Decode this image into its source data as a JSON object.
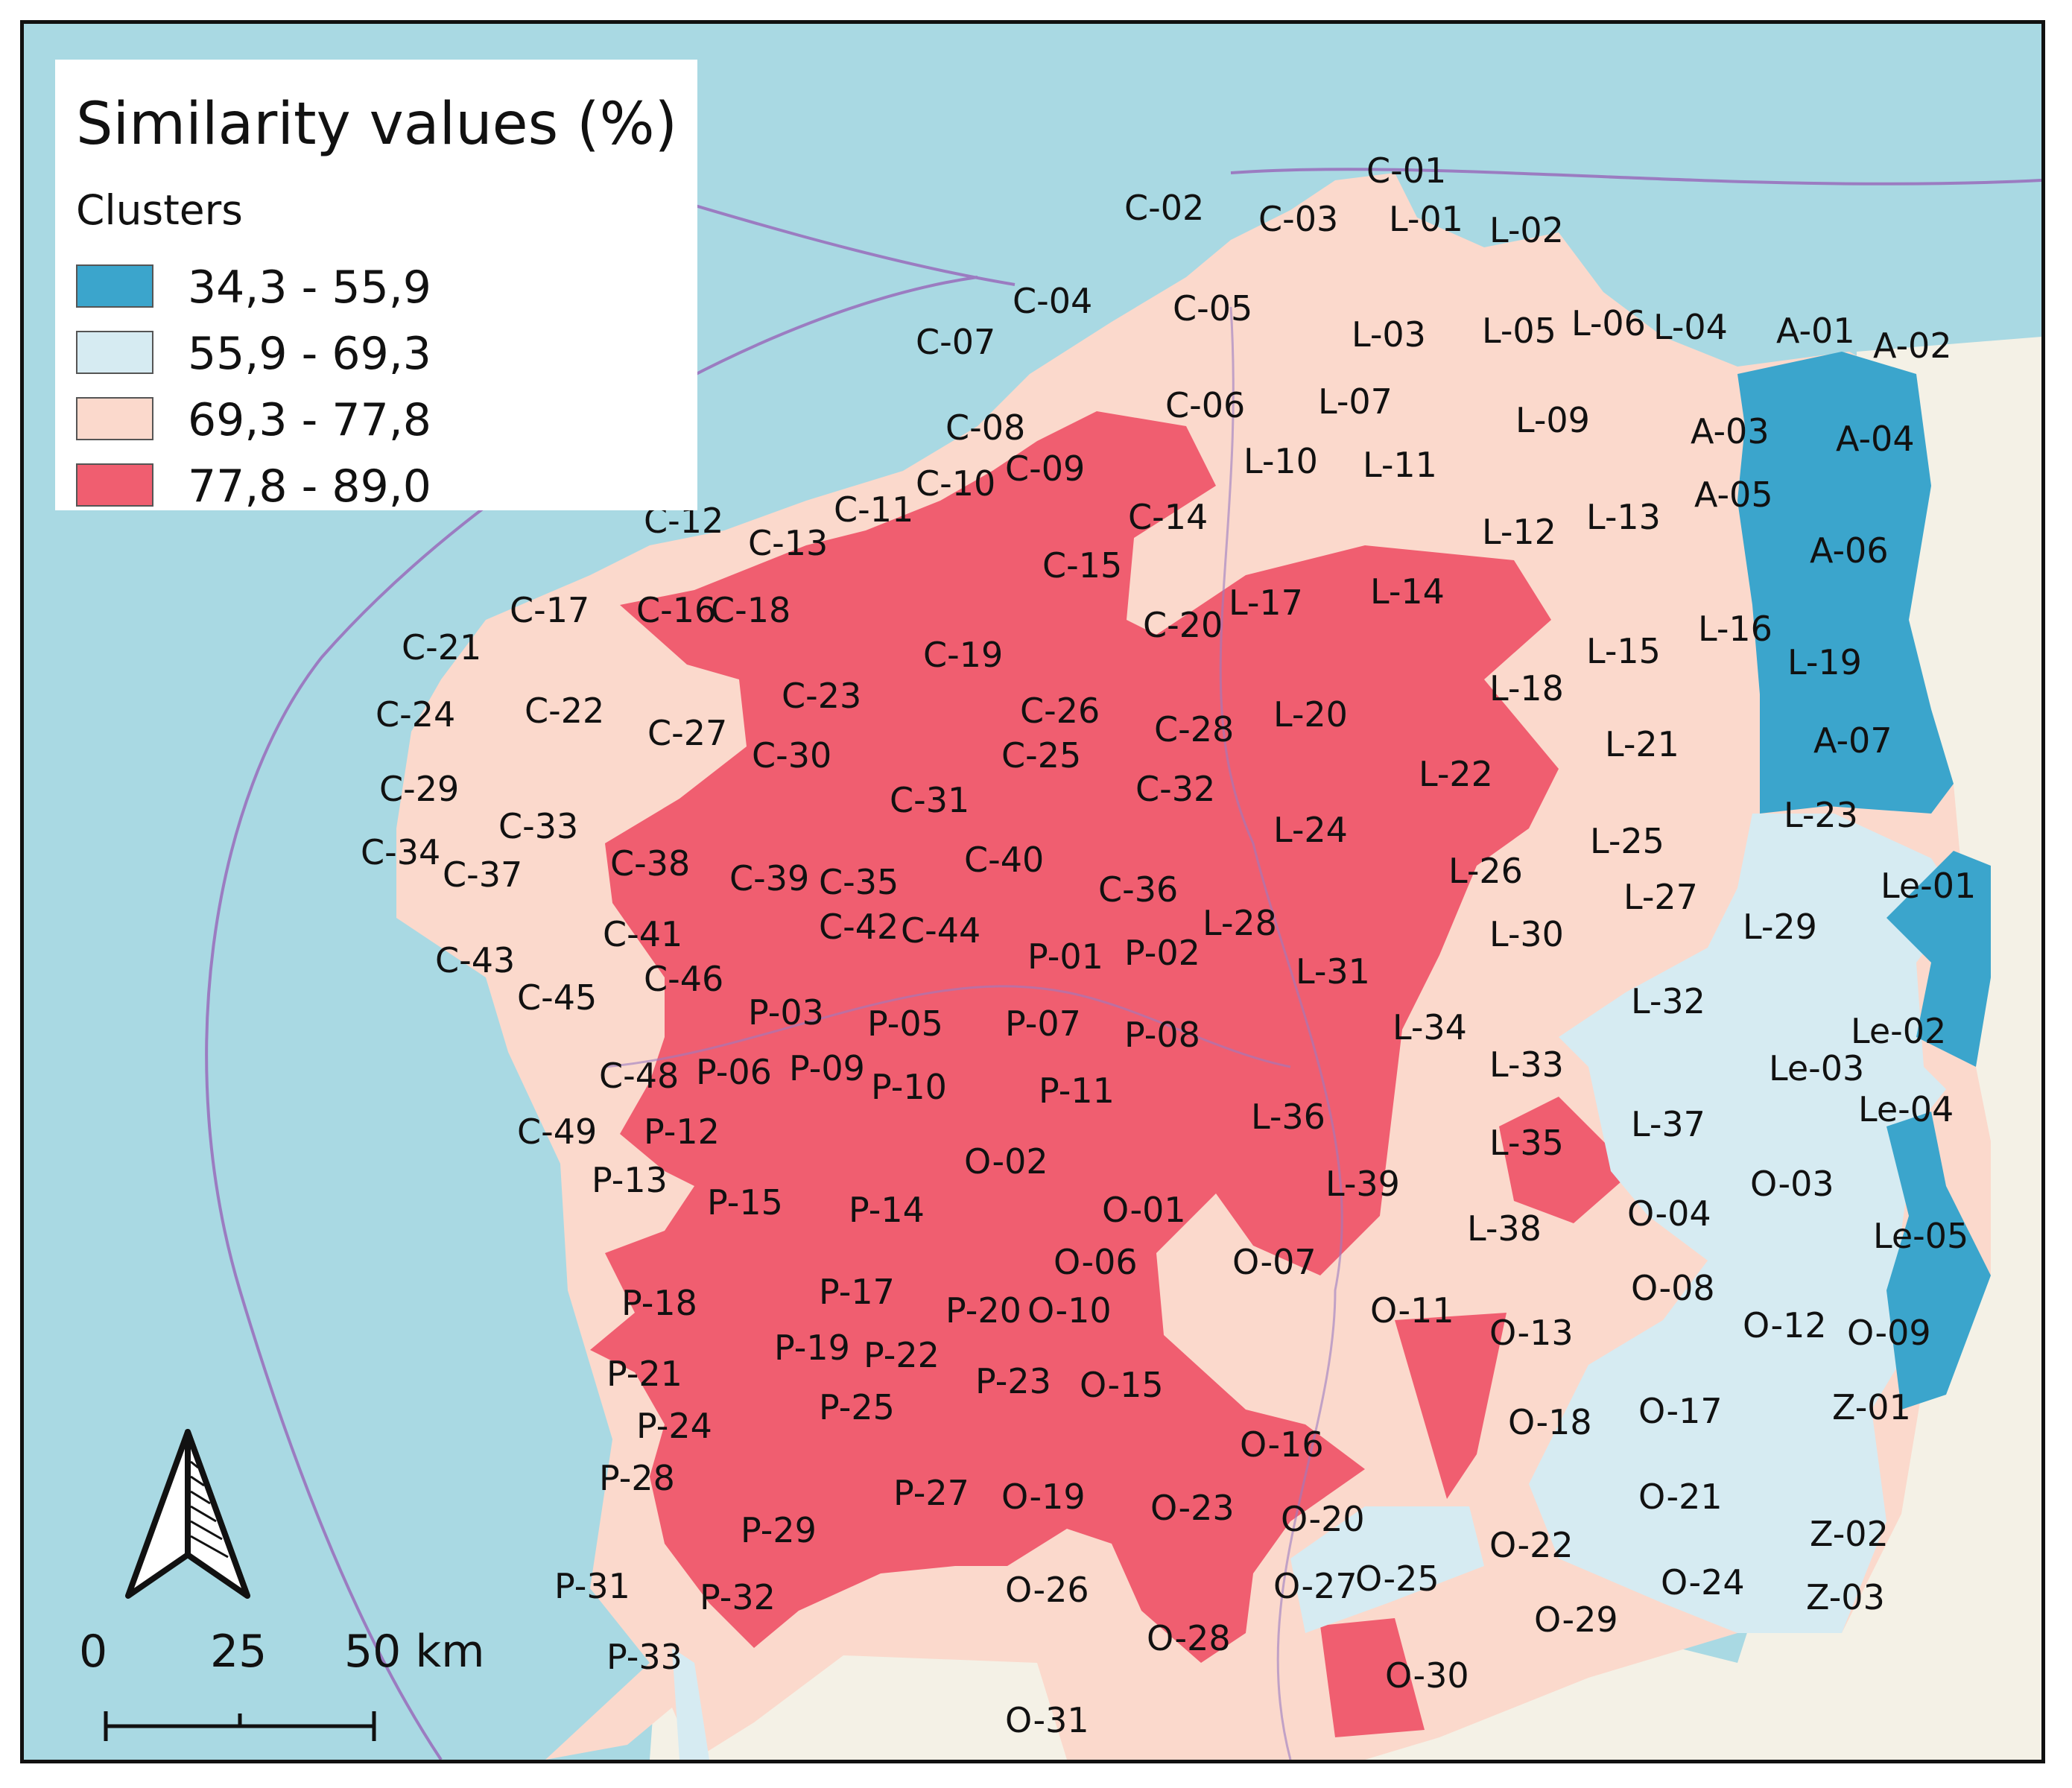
{
  "legend": {
    "title": "Similarity values (%)",
    "subtitle": "Clusters",
    "classes": [
      {
        "label": "34,3 - 55,9",
        "color": "#3ba5cc"
      },
      {
        "label": "55,9 - 69,3",
        "color": "#d6ebf2"
      },
      {
        "label": "69,3 - 77,8",
        "color": "#fbd9cc"
      },
      {
        "label": "77,8 - 89,0",
        "color": "#f05e70"
      }
    ]
  },
  "scale": {
    "ticks": [
      "0",
      "25",
      "50 km"
    ]
  },
  "colors": {
    "sea": "#a9d9e3",
    "land_outside": "#f4f1e6",
    "border_lines": "#9b7cc1"
  },
  "north_arrow_icon": "north-arrow-icon",
  "labels": [
    {
      "text": "C-01",
      "cluster": 2
    },
    {
      "text": "C-02",
      "cluster": 2
    },
    {
      "text": "C-03",
      "cluster": 2
    },
    {
      "text": "C-04",
      "cluster": 2
    },
    {
      "text": "C-05",
      "cluster": 2
    },
    {
      "text": "C-06",
      "cluster": 2
    },
    {
      "text": "C-07",
      "cluster": 2
    },
    {
      "text": "C-08",
      "cluster": 2
    },
    {
      "text": "C-09",
      "cluster": 3
    },
    {
      "text": "C-10",
      "cluster": 3
    },
    {
      "text": "C-11",
      "cluster": 3
    },
    {
      "text": "C-12",
      "cluster": 2
    },
    {
      "text": "C-13",
      "cluster": 3
    },
    {
      "text": "C-14",
      "cluster": 2
    },
    {
      "text": "C-15",
      "cluster": 2
    },
    {
      "text": "C-16",
      "cluster": 3
    },
    {
      "text": "C-17",
      "cluster": 2
    },
    {
      "text": "C-18",
      "cluster": 3
    },
    {
      "text": "C-19",
      "cluster": 3
    },
    {
      "text": "C-20",
      "cluster": 3
    },
    {
      "text": "C-21",
      "cluster": 2
    },
    {
      "text": "C-22",
      "cluster": 2
    },
    {
      "text": "C-23",
      "cluster": 3
    },
    {
      "text": "C-24",
      "cluster": 2
    },
    {
      "text": "C-25",
      "cluster": 3
    },
    {
      "text": "C-26",
      "cluster": 3
    },
    {
      "text": "C-27",
      "cluster": 2
    },
    {
      "text": "C-28",
      "cluster": 3
    },
    {
      "text": "C-29",
      "cluster": 2
    },
    {
      "text": "C-30",
      "cluster": 3
    },
    {
      "text": "C-31",
      "cluster": 3
    },
    {
      "text": "C-32",
      "cluster": 3
    },
    {
      "text": "C-33",
      "cluster": 2
    },
    {
      "text": "C-34",
      "cluster": 2
    },
    {
      "text": "C-35",
      "cluster": 3
    },
    {
      "text": "C-36",
      "cluster": 3
    },
    {
      "text": "C-37",
      "cluster": 2
    },
    {
      "text": "C-38",
      "cluster": 3
    },
    {
      "text": "C-39",
      "cluster": 3
    },
    {
      "text": "C-40",
      "cluster": 3
    },
    {
      "text": "C-41",
      "cluster": 3
    },
    {
      "text": "C-42",
      "cluster": 3
    },
    {
      "text": "C-43",
      "cluster": 2
    },
    {
      "text": "C-44",
      "cluster": 3
    },
    {
      "text": "C-45",
      "cluster": 2
    },
    {
      "text": "C-46",
      "cluster": 3
    },
    {
      "text": "C-48",
      "cluster": 3
    },
    {
      "text": "C-49",
      "cluster": 2
    },
    {
      "text": "L-01",
      "cluster": 2
    },
    {
      "text": "L-02",
      "cluster": 2
    },
    {
      "text": "L-03",
      "cluster": 2
    },
    {
      "text": "L-04",
      "cluster": 2
    },
    {
      "text": "L-05",
      "cluster": 2
    },
    {
      "text": "L-06",
      "cluster": 2
    },
    {
      "text": "L-07",
      "cluster": 2
    },
    {
      "text": "L-09",
      "cluster": 2
    },
    {
      "text": "L-10",
      "cluster": 2
    },
    {
      "text": "L-11",
      "cluster": 2
    },
    {
      "text": "L-12",
      "cluster": 2
    },
    {
      "text": "L-13",
      "cluster": 2
    },
    {
      "text": "L-14",
      "cluster": 3
    },
    {
      "text": "L-15",
      "cluster": 2
    },
    {
      "text": "L-16",
      "cluster": 2
    },
    {
      "text": "L-17",
      "cluster": 3
    },
    {
      "text": "L-18",
      "cluster": 2
    },
    {
      "text": "L-19",
      "cluster": 0
    },
    {
      "text": "L-20",
      "cluster": 3
    },
    {
      "text": "L-21",
      "cluster": 2
    },
    {
      "text": "L-22",
      "cluster": 3
    },
    {
      "text": "L-23",
      "cluster": 1
    },
    {
      "text": "L-24",
      "cluster": 3
    },
    {
      "text": "L-25",
      "cluster": 2
    },
    {
      "text": "L-26",
      "cluster": 2
    },
    {
      "text": "L-27",
      "cluster": 2
    },
    {
      "text": "L-28",
      "cluster": 3
    },
    {
      "text": "L-29",
      "cluster": 1
    },
    {
      "text": "L-30",
      "cluster": 1
    },
    {
      "text": "L-31",
      "cluster": 3
    },
    {
      "text": "L-32",
      "cluster": 1
    },
    {
      "text": "L-33",
      "cluster": 2
    },
    {
      "text": "L-34",
      "cluster": 2
    },
    {
      "text": "L-35",
      "cluster": 3
    },
    {
      "text": "L-36",
      "cluster": 3
    },
    {
      "text": "L-37",
      "cluster": 1
    },
    {
      "text": "L-38",
      "cluster": 2
    },
    {
      "text": "L-39",
      "cluster": 2
    },
    {
      "text": "A-01",
      "cluster": 0
    },
    {
      "text": "A-02",
      "cluster": 0
    },
    {
      "text": "A-03",
      "cluster": 0
    },
    {
      "text": "A-04",
      "cluster": 0
    },
    {
      "text": "A-05",
      "cluster": 0
    },
    {
      "text": "A-06",
      "cluster": 0
    },
    {
      "text": "A-07",
      "cluster": 0
    },
    {
      "text": "Le-01",
      "cluster": 0
    },
    {
      "text": "Le-02",
      "cluster": 1
    },
    {
      "text": "Le-03",
      "cluster": 1
    },
    {
      "text": "Le-04",
      "cluster": 0
    },
    {
      "text": "Le-05",
      "cluster": 0
    },
    {
      "text": "P-01",
      "cluster": 3
    },
    {
      "text": "P-02",
      "cluster": 3
    },
    {
      "text": "P-03",
      "cluster": 3
    },
    {
      "text": "P-05",
      "cluster": 3
    },
    {
      "text": "P-06",
      "cluster": 2
    },
    {
      "text": "P-07",
      "cluster": 3
    },
    {
      "text": "P-08",
      "cluster": 3
    },
    {
      "text": "P-09",
      "cluster": 3
    },
    {
      "text": "P-10",
      "cluster": 3
    },
    {
      "text": "P-11",
      "cluster": 3
    },
    {
      "text": "P-12",
      "cluster": 2
    },
    {
      "text": "P-13",
      "cluster": 3
    },
    {
      "text": "P-14",
      "cluster": 3
    },
    {
      "text": "P-15",
      "cluster": 3
    },
    {
      "text": "P-17",
      "cluster": 3
    },
    {
      "text": "P-18",
      "cluster": 3
    },
    {
      "text": "P-19",
      "cluster": 3
    },
    {
      "text": "P-20",
      "cluster": 3
    },
    {
      "text": "P-21",
      "cluster": 3
    },
    {
      "text": "P-22",
      "cluster": 3
    },
    {
      "text": "P-23",
      "cluster": 3
    },
    {
      "text": "P-24",
      "cluster": 3
    },
    {
      "text": "P-25",
      "cluster": 3
    },
    {
      "text": "P-27",
      "cluster": 3
    },
    {
      "text": "P-28",
      "cluster": 2
    },
    {
      "text": "P-29",
      "cluster": 3
    },
    {
      "text": "P-31",
      "cluster": 1
    },
    {
      "text": "P-32",
      "cluster": 2
    },
    {
      "text": "P-33",
      "cluster": 1
    },
    {
      "text": "O-01",
      "cluster": 2
    },
    {
      "text": "O-02",
      "cluster": 3
    },
    {
      "text": "O-03",
      "cluster": 1
    },
    {
      "text": "O-04",
      "cluster": 1
    },
    {
      "text": "O-06",
      "cluster": 3
    },
    {
      "text": "O-07",
      "cluster": 2
    },
    {
      "text": "O-08",
      "cluster": 2
    },
    {
      "text": "O-09",
      "cluster": 1
    },
    {
      "text": "O-10",
      "cluster": 2
    },
    {
      "text": "O-11",
      "cluster": 3
    },
    {
      "text": "O-12",
      "cluster": 1
    },
    {
      "text": "O-13",
      "cluster": 2
    },
    {
      "text": "O-15",
      "cluster": 3
    },
    {
      "text": "O-16",
      "cluster": 3
    },
    {
      "text": "O-17",
      "cluster": 1
    },
    {
      "text": "O-18",
      "cluster": 1
    },
    {
      "text": "O-19",
      "cluster": 3
    },
    {
      "text": "O-20",
      "cluster": 1
    },
    {
      "text": "O-21",
      "cluster": 2
    },
    {
      "text": "O-22",
      "cluster": 2
    },
    {
      "text": "O-23",
      "cluster": 3
    },
    {
      "text": "O-24",
      "cluster": 1
    },
    {
      "text": "O-25",
      "cluster": 2
    },
    {
      "text": "O-26",
      "cluster": 2
    },
    {
      "text": "O-27",
      "cluster": 3
    },
    {
      "text": "O-28",
      "cluster": 2
    },
    {
      "text": "O-29",
      "cluster": 2
    },
    {
      "text": "O-30",
      "cluster": 2
    },
    {
      "text": "O-31",
      "cluster": 2
    },
    {
      "text": "Z-01",
      "cluster": 1
    },
    {
      "text": "Z-02",
      "cluster": 1
    },
    {
      "text": "Z-03",
      "cluster": 1
    }
  ]
}
